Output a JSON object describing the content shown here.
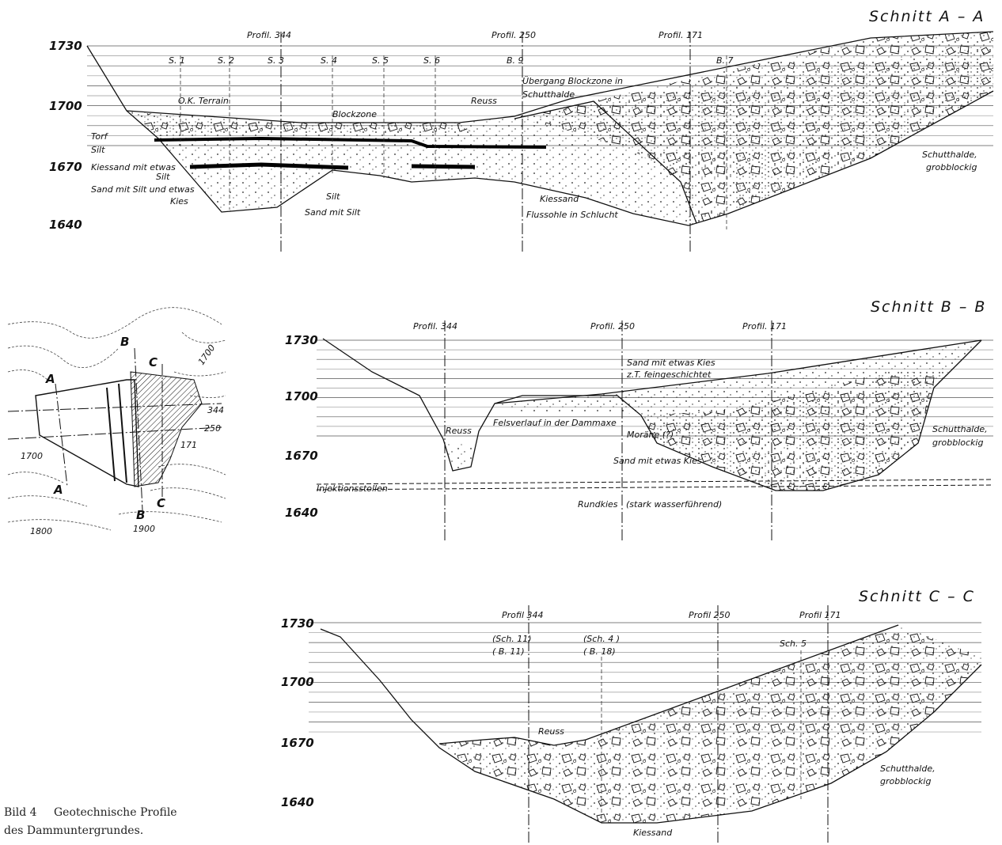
{
  "sections": [
    {
      "title": "Schnitt  A – A",
      "elevations": [
        "1730",
        "1700",
        "1670",
        "1640"
      ],
      "profiles": [
        "Profil. 344",
        "Profil. 250",
        "Profil. 171"
      ],
      "boreholes": [
        "S. 1",
        "S. 2",
        "S. 3",
        "S. 4",
        "S. 5",
        "S. 6",
        "B. 9",
        "B. 7"
      ],
      "annotations": [
        "O.K. Terrain",
        "Blockzone",
        "Reuss",
        "Übergang Blockzone in",
        "Schutthalde",
        "Torf",
        "Silt",
        "Kiessand mit etwas",
        "Silt",
        "Sand mit Silt und etwas",
        "Kies",
        "Silt",
        "Sand mit Silt",
        "Kiessand",
        "Flussohle in Schlucht",
        "Schutthalde,",
        "grobblockig"
      ]
    },
    {
      "title": "Schnitt  B – B",
      "elevations": [
        "1730",
        "1700",
        "1670",
        "1640"
      ],
      "profiles": [
        "Profil. 344",
        "Profil. 250",
        "Profil. 171"
      ],
      "annotations": [
        "Sand mit etwas Kies",
        "z.T. feingeschichtet",
        "Reuss",
        "Felsverlauf in der Dammaxe",
        "Moräne (?)",
        "Sand mit etwas Kies",
        "Schutthalde,",
        "grobblockig",
        "Injektionsstollen",
        "Rundkies   (stark wasserführend)"
      ]
    },
    {
      "title": "Schnitt  C – C",
      "elevations": [
        "1730",
        "1700",
        "1670",
        "1640"
      ],
      "profiles": [
        "Profil 344",
        "Profil 250",
        "Profil 171"
      ],
      "boreholes": [
        "(Sch. 11)",
        "( B. 11)",
        "(Sch. 4 )",
        "( B. 18)",
        "Sch. 5"
      ],
      "annotations": [
        "Reuss",
        "Schutthalde,",
        "grobblockig",
        "Kiessand"
      ]
    }
  ],
  "map": {
    "labels": [
      "B",
      "C",
      "A",
      "A",
      "B",
      "C",
      "344",
      "250",
      "171",
      "1700",
      "1700",
      "1800",
      "1900"
    ]
  },
  "caption": {
    "label": "Bild 4",
    "lines": [
      "Geotechnische Profile",
      "des Dammuntergrundes."
    ]
  }
}
